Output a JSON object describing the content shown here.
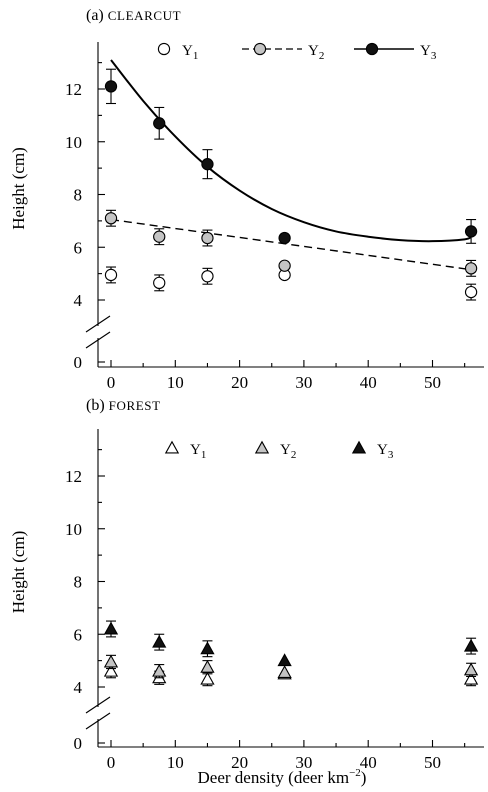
{
  "chart_data": [
    {
      "type": "scatter",
      "panel_label": "(a)",
      "panel_title": "CLEARCUT",
      "ylabel": "Height (cm)",
      "xlabel": "",
      "ylim": [
        0,
        13.5
      ],
      "xlim": [
        -5,
        58
      ],
      "y_axis_break": true,
      "yticks": [
        0,
        4,
        6,
        8,
        10,
        12
      ],
      "ytick_labels": [
        "0",
        "4",
        "6",
        "8",
        "10",
        "12"
      ],
      "xticks": [
        0,
        10,
        20,
        30,
        40,
        50
      ],
      "xtick_labels": [
        "0",
        "10",
        "20",
        "30",
        "40",
        "50"
      ],
      "legend": [
        {
          "base": "Y",
          "sub": "1",
          "marker": "circle-open",
          "line": "none"
        },
        {
          "base": "Y",
          "sub": "2",
          "marker": "circle-gray",
          "line": "dashed"
        },
        {
          "base": "Y",
          "sub": "3",
          "marker": "circle-filled",
          "line": "solid"
        }
      ],
      "series": [
        {
          "marker": "circle-open",
          "x": [
            0,
            7.5,
            15,
            27,
            56
          ],
          "y": [
            4.95,
            4.65,
            4.9,
            4.95,
            4.3
          ],
          "err": [
            0.3,
            0.3,
            0.3,
            0,
            0.3
          ]
        },
        {
          "marker": "circle-gray",
          "x": [
            0,
            7.5,
            15,
            27,
            56
          ],
          "y": [
            7.1,
            6.4,
            6.35,
            5.3,
            5.2
          ],
          "err": [
            0.3,
            0.3,
            0.3,
            0,
            0.3
          ]
        },
        {
          "marker": "circle-filled",
          "x": [
            0,
            7.5,
            15,
            27,
            56
          ],
          "y": [
            12.1,
            10.7,
            9.15,
            6.35,
            6.6
          ],
          "err": [
            0.65,
            0.6,
            0.55,
            0,
            0.45
          ]
        }
      ],
      "fits": [
        {
          "style": "solid",
          "x": [
            0,
            5,
            10,
            15,
            20,
            25,
            30,
            35,
            40,
            45,
            50,
            55,
            56
          ],
          "y": [
            13.1,
            11.55,
            10.2,
            9.05,
            8.15,
            7.45,
            6.95,
            6.6,
            6.4,
            6.27,
            6.23,
            6.3,
            6.4
          ]
        },
        {
          "style": "dashed",
          "x": [
            0,
            56
          ],
          "y": [
            7.05,
            5.15
          ]
        }
      ]
    },
    {
      "type": "scatter",
      "panel_label": "(b)",
      "panel_title": "FOREST",
      "ylabel": "Height (cm)",
      "xlabel": "Deer density (deer km",
      "xlabel_sup": "−2",
      "xlabel_end": ")",
      "ylim": [
        0,
        13.5
      ],
      "xlim": [
        -5,
        58
      ],
      "y_axis_break": true,
      "yticks": [
        0,
        4,
        6,
        8,
        10,
        12
      ],
      "ytick_labels": [
        "0",
        "4",
        "6",
        "8",
        "10",
        "12"
      ],
      "xticks": [
        0,
        10,
        20,
        30,
        40,
        50
      ],
      "xtick_labels": [
        "0",
        "10",
        "20",
        "30",
        "40",
        "50"
      ],
      "legend": [
        {
          "base": "Y",
          "sub": "1",
          "marker": "triangle-open"
        },
        {
          "base": "Y",
          "sub": "2",
          "marker": "triangle-gray"
        },
        {
          "base": "Y",
          "sub": "3",
          "marker": "triangle-filled"
        }
      ],
      "series": [
        {
          "marker": "triangle-open",
          "x": [
            0,
            7.5,
            15,
            27,
            56
          ],
          "y": [
            4.6,
            4.35,
            4.3,
            4.5,
            4.3
          ],
          "err": [
            0.25,
            0.25,
            0.25,
            0,
            0.25
          ]
        },
        {
          "marker": "triangle-gray",
          "x": [
            0,
            7.5,
            15,
            27,
            56
          ],
          "y": [
            4.95,
            4.6,
            4.75,
            4.55,
            4.65
          ],
          "err": [
            0.25,
            0.25,
            0.25,
            0,
            0.25
          ]
        },
        {
          "marker": "triangle-filled",
          "x": [
            0,
            7.5,
            15,
            27,
            56
          ],
          "y": [
            6.2,
            5.7,
            5.45,
            5.0,
            5.55
          ],
          "err": [
            0.3,
            0.3,
            0.3,
            0,
            0.3
          ]
        }
      ]
    }
  ]
}
